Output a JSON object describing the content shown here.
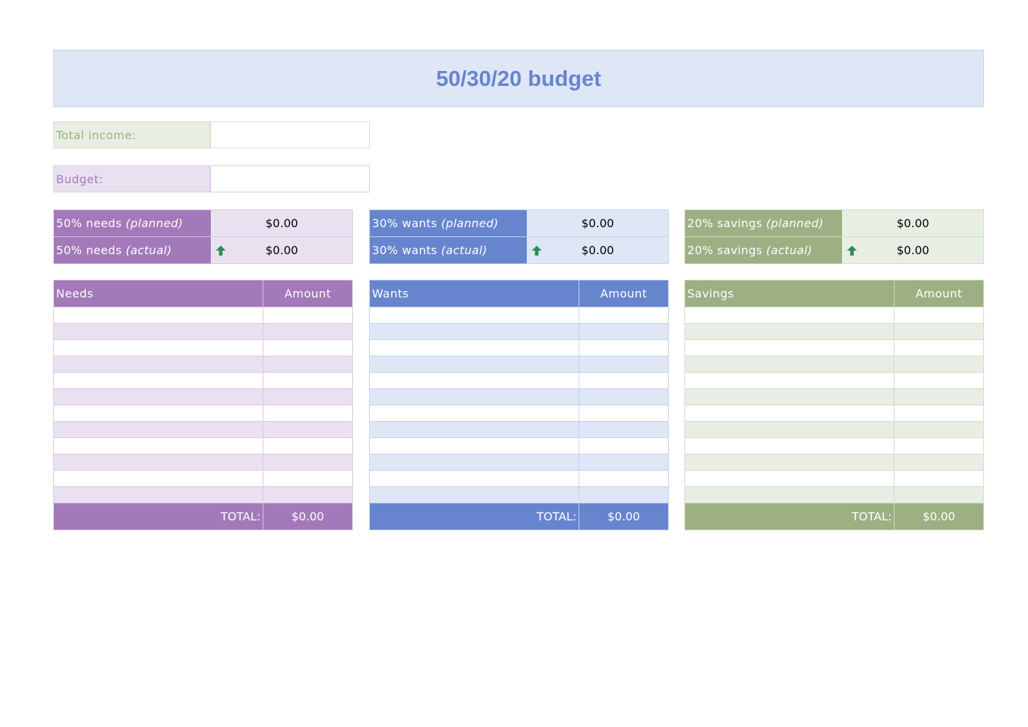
{
  "title": "50/30/20 budget",
  "income": {
    "label": "Total income:",
    "value": ""
  },
  "budget": {
    "label": "Budget:",
    "value": ""
  },
  "colors": {
    "needs": "#a379b9",
    "needs_light": "#e9e1f0",
    "wants": "#6785cf",
    "wants_light": "#dfe6f6",
    "savings": "#9cb083",
    "savings_light": "#e8eee3",
    "arrow": "#2e8b57"
  },
  "sections": [
    {
      "key": "needs",
      "planned_label": "50% needs",
      "actual_label": "50% needs",
      "planned_tag": "(planned)",
      "actual_tag": "(actual)",
      "planned": "$0.00",
      "actual": "$0.00",
      "arrow_icon": "arrow-up-icon",
      "header": "Needs",
      "amount_header": "Amount",
      "total_label": "TOTAL:",
      "total": "$0.00"
    },
    {
      "key": "wants",
      "planned_label": "30% wants",
      "actual_label": "30% wants",
      "planned_tag": "(planned)",
      "actual_tag": "(actual)",
      "planned": "$0.00",
      "actual": "$0.00",
      "arrow_icon": "arrow-up-icon",
      "header": "Wants",
      "amount_header": "Amount",
      "total_label": "TOTAL:",
      "total": "$0.00"
    },
    {
      "key": "savings",
      "planned_label": "20% savings",
      "actual_label": "20% savings",
      "planned_tag": "(planned)",
      "actual_tag": "(actual)",
      "planned": "$0.00",
      "actual": "$0.00",
      "arrow_icon": "arrow-up-icon",
      "header": "Savings",
      "amount_header": "Amount",
      "total_label": "TOTAL:",
      "total": "$0.00"
    }
  ]
}
